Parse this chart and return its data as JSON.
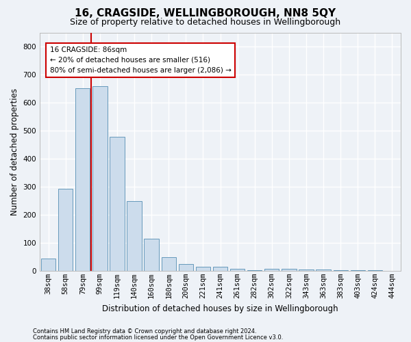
{
  "title": "16, CRAGSIDE, WELLINGBOROUGH, NN8 5QY",
  "subtitle": "Size of property relative to detached houses in Wellingborough",
  "xlabel": "Distribution of detached houses by size in Wellingborough",
  "ylabel": "Number of detached properties",
  "footnote1": "Contains HM Land Registry data © Crown copyright and database right 2024.",
  "footnote2": "Contains public sector information licensed under the Open Government Licence v3.0.",
  "categories": [
    "38sqm",
    "58sqm",
    "79sqm",
    "99sqm",
    "119sqm",
    "140sqm",
    "160sqm",
    "180sqm",
    "200sqm",
    "221sqm",
    "241sqm",
    "261sqm",
    "282sqm",
    "302sqm",
    "322sqm",
    "343sqm",
    "363sqm",
    "383sqm",
    "403sqm",
    "424sqm",
    "444sqm"
  ],
  "values": [
    43,
    293,
    651,
    659,
    478,
    248,
    114,
    49,
    25,
    14,
    14,
    8,
    2,
    8,
    8,
    4,
    5,
    2,
    2,
    2,
    0
  ],
  "bar_color": "#ccdcec",
  "bar_edge_color": "#6699bb",
  "vline_x_index": 2.5,
  "vline_color": "#cc0000",
  "annotation_line1": "16 CRAGSIDE: 86sqm",
  "annotation_line2": "← 20% of detached houses are smaller (516)",
  "annotation_line3": "80% of semi-detached houses are larger (2,086) →",
  "annotation_box_color": "#ffffff",
  "annotation_box_edge": "#cc0000",
  "ylim": [
    0,
    850
  ],
  "yticks": [
    0,
    100,
    200,
    300,
    400,
    500,
    600,
    700,
    800
  ],
  "bg_color": "#eef2f7",
  "grid_color": "#ffffff",
  "title_fontsize": 11,
  "subtitle_fontsize": 9,
  "axis_label_fontsize": 8.5,
  "tick_fontsize": 7.5,
  "footnote_fontsize": 6
}
